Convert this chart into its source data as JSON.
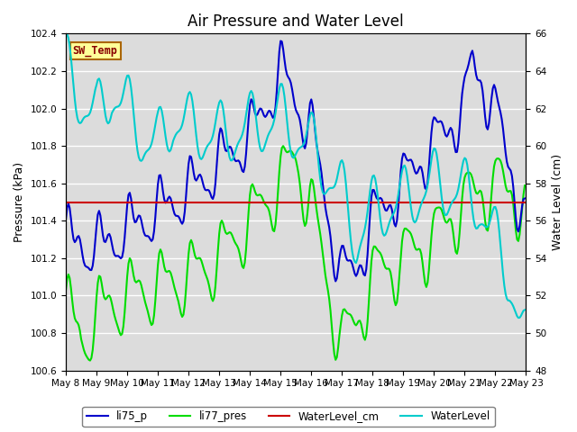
{
  "title": "Air Pressure and Water Level",
  "ylabel_left": "Pressure (kPa)",
  "ylabel_right": "Water Level (cm)",
  "ylim_left": [
    100.6,
    102.4
  ],
  "ylim_right": [
    48,
    66
  ],
  "yticks_left": [
    100.6,
    100.8,
    101.0,
    101.2,
    101.4,
    101.6,
    101.8,
    102.0,
    102.2,
    102.4
  ],
  "yticks_right": [
    48,
    50,
    52,
    54,
    56,
    58,
    60,
    62,
    64,
    66
  ],
  "xtick_labels": [
    "May 8",
    "May 9",
    "May 10",
    "May 11",
    "May 12",
    "May 13",
    "May 14",
    "May 15",
    "May 16",
    "May 17",
    "May 18",
    "May 19",
    "May 20",
    "May 21",
    "May 22",
    "May 23"
  ],
  "line_colors": {
    "li75_p": "#0000CC",
    "li77_pres": "#00DD00",
    "WaterLevel_cm": "#CC0000",
    "WaterLevel": "#00CCCC"
  },
  "line_widths": {
    "li75_p": 1.5,
    "li77_pres": 1.5,
    "WaterLevel_cm": 1.5,
    "WaterLevel": 1.5
  },
  "annotation_text": "SW_Temp",
  "annotation_box_color": "#FFFF99",
  "annotation_box_edgecolor": "#AA6600",
  "annotation_text_color": "#880000",
  "background_color": "#DCDCDC",
  "grid_color": "#FFFFFF",
  "title_fontsize": 12,
  "axis_label_fontsize": 9,
  "tick_fontsize": 7.5,
  "legend_fontsize": 8.5
}
